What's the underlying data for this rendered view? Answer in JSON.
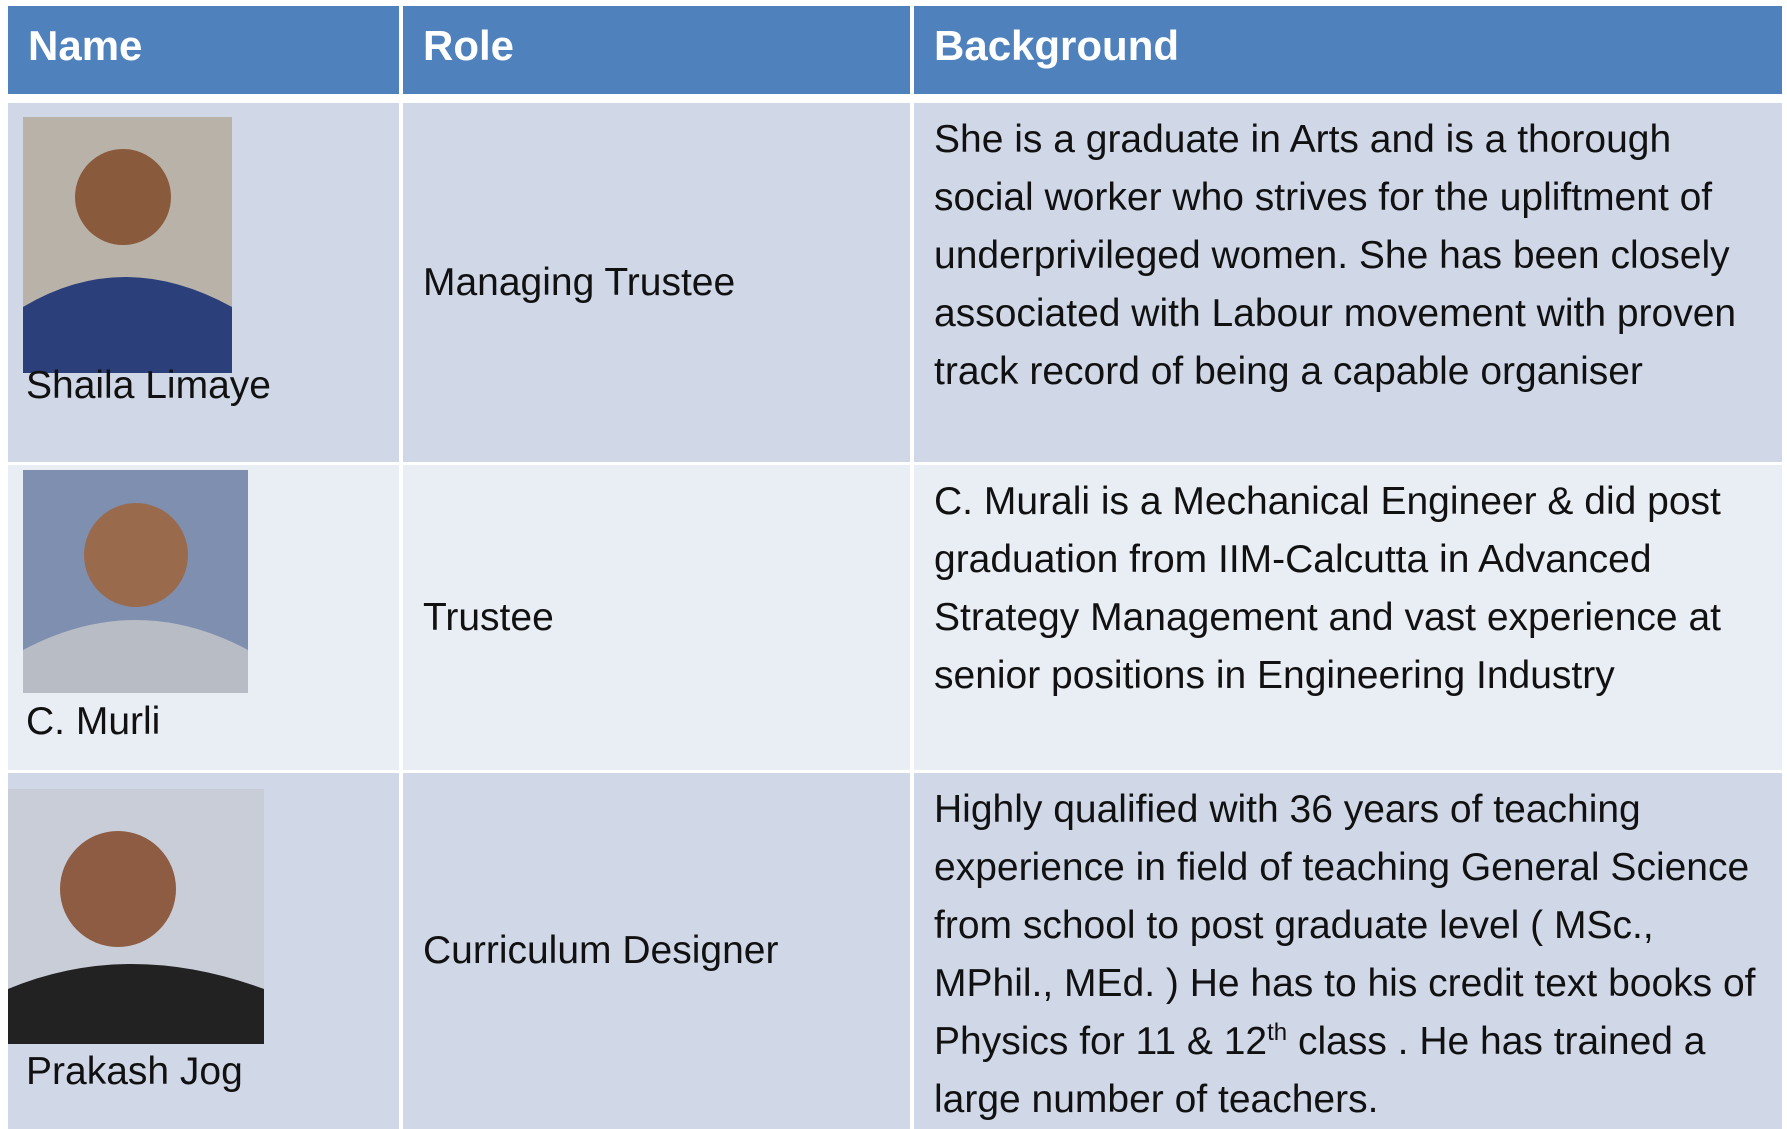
{
  "table": {
    "header": [
      "Name",
      "Role",
      "Background"
    ],
    "rows": [
      {
        "name": "Shaila Limaye",
        "role": "Managing Trustee",
        "background": "She is a graduate in Arts and is a thorough social worker who strives for the upliftment of underprivileged women. She has been closely associated with Labour movement with proven track record of being a capable organiser"
      },
      {
        "name": "C. Murli",
        "role": "Trustee",
        "background": "C. Murali is a Mechanical Engineer & did post graduation from IIM-Calcutta in Advanced Strategy Management and vast experience at senior positions in Engineering Industry"
      },
      {
        "name": "Prakash Jog",
        "role": "Curriculum Designer",
        "background": [
          "Highly qualified with 36 years of teaching experience in field of teaching General Science from school to post graduate level ( MSc., MPhil., MEd. ) He has to his credit text books of Physics for 11 & 12",
          "th",
          " class . He has trained a large number of teachers."
        ]
      }
    ]
  }
}
